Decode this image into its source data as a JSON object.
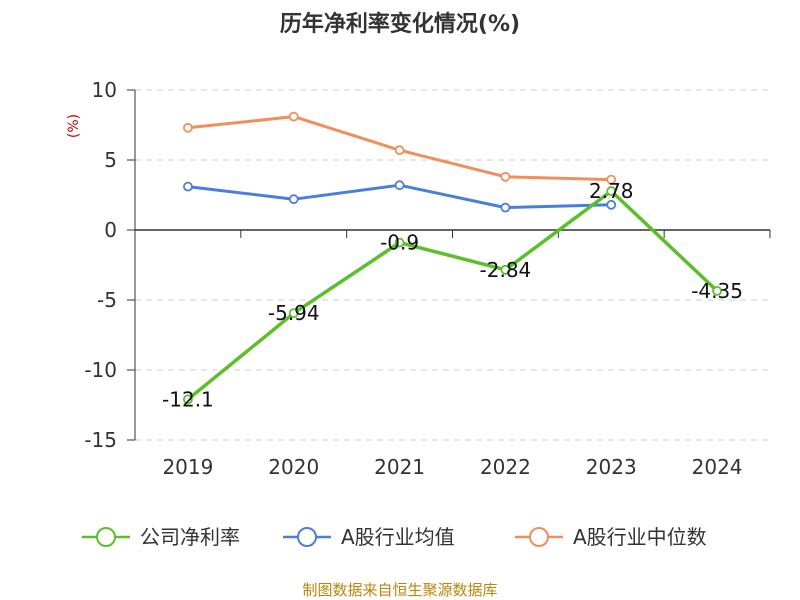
{
  "chart_data": {
    "type": "line",
    "title": "历年净利率变化情况(%)",
    "ylabel": "(%)",
    "xlabel": "",
    "categories": [
      "2019",
      "2020",
      "2021",
      "2022",
      "2023",
      "2024"
    ],
    "ylim": [
      -15,
      10
    ],
    "yticks": [
      10,
      5,
      0,
      -5,
      -10,
      -15
    ],
    "grid": true,
    "legend_position": "bottom",
    "series": [
      {
        "name": "公司净利率",
        "color": "#5cbf2a",
        "values": [
          -12.1,
          -5.94,
          -0.9,
          -2.84,
          2.78,
          -4.35
        ],
        "labels": [
          "-12.1",
          "-5.94",
          "-0.9",
          "-2.84",
          "2.78",
          "-4.35"
        ]
      },
      {
        "name": "A股行业均值",
        "color": "#4a7fd8",
        "values": [
          3.1,
          2.2,
          3.2,
          1.6,
          1.8,
          null
        ]
      },
      {
        "name": "A股行业中位数",
        "color": "#f28e5a",
        "values": [
          7.3,
          8.1,
          5.7,
          3.8,
          3.6,
          null
        ]
      }
    ],
    "source": "制图数据来自恒生聚源数据库"
  }
}
